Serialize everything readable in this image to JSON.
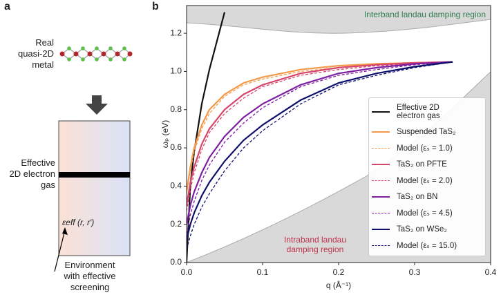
{
  "diagram": {
    "label": "a",
    "top_text": [
      "Real",
      "quasi-2D",
      "metal"
    ],
    "box_text": [
      "Effective",
      "2D electron",
      "gas"
    ],
    "epsilon_label": "εeff (r, r′)",
    "bottom_text": [
      "Environment",
      "with effective",
      "screening"
    ]
  },
  "chart_data": {
    "type": "line",
    "panel_label": "b",
    "xlabel": "q (Å⁻¹)",
    "ylabel": "ωₚ (eV)",
    "x": [
      0,
      0.005,
      0.01,
      0.02,
      0.03,
      0.05,
      0.075,
      0.1,
      0.15,
      0.2,
      0.25,
      0.3,
      0.35
    ],
    "series": [
      {
        "name": "Effective 2D electron gas",
        "color": "#111111",
        "dashed": false,
        "values": [
          0,
          0.41,
          0.58,
          0.83,
          1.01,
          1.31,
          null,
          null,
          null,
          null,
          null,
          null,
          null
        ]
      },
      {
        "name": "Suspended TaS₂",
        "color": "#f39a4a",
        "dashed": false,
        "values": [
          0.37,
          0.5,
          0.6,
          0.72,
          0.8,
          0.88,
          0.94,
          0.97,
          1.01,
          1.03,
          1.04,
          1.045,
          1.05
        ]
      },
      {
        "name": "Model (εₛ = 1.0)",
        "color": "#f39a4a",
        "dashed": true,
        "values": [
          0.36,
          0.48,
          0.58,
          0.7,
          0.78,
          0.87,
          0.93,
          0.96,
          1.0,
          1.02,
          1.035,
          1.04,
          1.05
        ]
      },
      {
        "name": "TaS₂ on PFTE",
        "color": "#d6456a",
        "dashed": false,
        "values": [
          0.3,
          0.42,
          0.5,
          0.62,
          0.7,
          0.8,
          0.88,
          0.93,
          0.99,
          1.02,
          1.035,
          1.045,
          1.05
        ]
      },
      {
        "name": "Model (εₛ = 2.0)",
        "color": "#d6456a",
        "dashed": true,
        "values": [
          0.27,
          0.38,
          0.47,
          0.59,
          0.68,
          0.78,
          0.86,
          0.92,
          0.98,
          1.01,
          1.03,
          1.04,
          1.05
        ]
      },
      {
        "name": "TaS₂ on BN",
        "color": "#7d1ea0",
        "dashed": false,
        "values": [
          0.2,
          0.3,
          0.37,
          0.47,
          0.55,
          0.66,
          0.76,
          0.83,
          0.93,
          0.99,
          1.02,
          1.04,
          1.05
        ]
      },
      {
        "name": "Model (εₛ = 4.5)",
        "color": "#7d1ea0",
        "dashed": true,
        "values": [
          0.15,
          0.25,
          0.32,
          0.43,
          0.51,
          0.63,
          0.73,
          0.81,
          0.92,
          0.98,
          1.01,
          1.035,
          1.05
        ]
      },
      {
        "name": "TaS₂ on WSe₂",
        "color": "#0d0f6b",
        "dashed": false,
        "values": [
          0.12,
          0.2,
          0.26,
          0.35,
          0.42,
          0.53,
          0.64,
          0.72,
          0.85,
          0.94,
          0.99,
          1.025,
          1.05
        ]
      },
      {
        "name": "Model (εₛ = 15.0)",
        "color": "#0d0f6b",
        "dashed": true,
        "values": [
          0.07,
          0.14,
          0.2,
          0.29,
          0.36,
          0.48,
          0.6,
          0.69,
          0.83,
          0.93,
          0.98,
          1.02,
          1.05
        ]
      }
    ],
    "xlim": [
      0,
      0.4
    ],
    "ylim": [
      0,
      1.345
    ],
    "xticks": [
      {
        "value": 0,
        "label": "0.0"
      },
      0.1,
      0.2,
      0.3,
      0.4
    ],
    "yticks": [
      {
        "value": 0,
        "label": "0.0"
      },
      0.2,
      0.4,
      0.6,
      0.8,
      {
        "value": 1,
        "label": "1.0"
      },
      1.2
    ],
    "annotations": [
      {
        "lines": [
          "Interband landau damping region"
        ],
        "color": "#2e7d4f"
      },
      {
        "lines": [
          "Intraband landau",
          "damping region"
        ],
        "color": "#c0304a"
      }
    ]
  }
}
